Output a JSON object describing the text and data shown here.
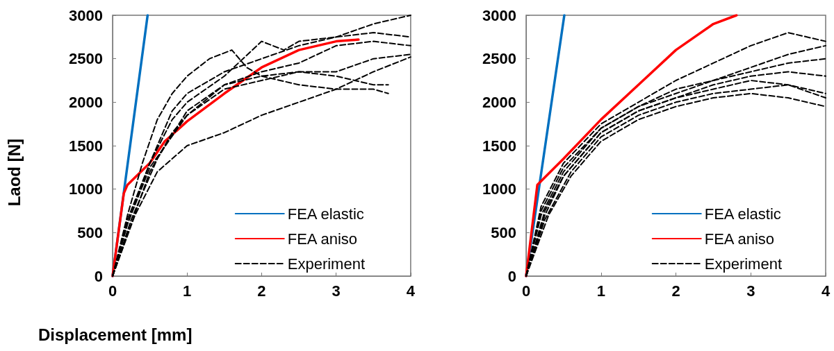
{
  "chart_data": [
    {
      "type": "line",
      "ylabel": "Laod [N]",
      "xlabel": "Displacement [mm]",
      "xlim": [
        0,
        4
      ],
      "ylim": [
        0,
        3000
      ],
      "xticks": [
        0,
        1,
        2,
        3,
        4
      ],
      "yticks": [
        0,
        500,
        1000,
        1500,
        2000,
        2500,
        3000
      ],
      "legend": "bottom right",
      "grid": false,
      "series": [
        {
          "name": "FEA elastic",
          "color": "#0070c0",
          "x": [
            0,
            0.47
          ],
          "values": [
            0,
            3000
          ]
        },
        {
          "name": "FEA aniso",
          "color": "#ff0000",
          "x": [
            0,
            0.15,
            0.2,
            0.5,
            0.7,
            1,
            1.5,
            2,
            2.5,
            3,
            3.3
          ],
          "values": [
            0,
            950,
            1050,
            1300,
            1550,
            1780,
            2100,
            2400,
            2600,
            2700,
            2720
          ]
        },
        {
          "name": "Experiment",
          "color": "#000000",
          "line_style": "dashed",
          "x": [
            0,
            0.2,
            0.4,
            0.6,
            0.8,
            1,
            1.3,
            1.6,
            1.8,
            2,
            2.5,
            3,
            3.5,
            3.7
          ],
          "values": [
            0,
            700,
            1300,
            1800,
            2100,
            2300,
            2500,
            2600,
            2400,
            2300,
            2200,
            2150,
            2150,
            2100
          ]
        },
        {
          "color": "#000000",
          "line_style": "dashed",
          "x": [
            0,
            0.2,
            0.5,
            0.8,
            1,
            1.5,
            2,
            2.5,
            3,
            3.5,
            4
          ],
          "values": [
            0,
            600,
            1300,
            1900,
            2100,
            2350,
            2500,
            2650,
            2750,
            2900,
            3000
          ]
        },
        {
          "color": "#000000",
          "line_style": "dashed",
          "x": [
            0,
            0.2,
            0.5,
            0.8,
            1,
            1.5,
            2,
            2.3,
            2.5,
            3,
            3.5,
            4
          ],
          "values": [
            0,
            650,
            1300,
            1800,
            2000,
            2300,
            2700,
            2600,
            2700,
            2750,
            2800,
            2750
          ]
        },
        {
          "color": "#000000",
          "line_style": "dashed",
          "x": [
            0,
            0.25,
            0.5,
            0.8,
            1,
            1.5,
            2,
            2.5,
            3,
            3.5,
            4
          ],
          "values": [
            0,
            600,
            1200,
            1650,
            1850,
            2150,
            2250,
            2350,
            2350,
            2500,
            2550
          ]
        },
        {
          "color": "#000000",
          "line_style": "dashed",
          "x": [
            0,
            0.3,
            0.6,
            1,
            1.5,
            2,
            2.5,
            3,
            3.5,
            4
          ],
          "values": [
            0,
            700,
            1200,
            1500,
            1650,
            1850,
            2000,
            2150,
            2350,
            2520
          ]
        },
        {
          "color": "#000000",
          "line_style": "dashed",
          "x": [
            0,
            0.25,
            0.6,
            1,
            1.5,
            2,
            2.5,
            3,
            3.5,
            3.7
          ],
          "values": [
            0,
            650,
            1350,
            1900,
            2200,
            2300,
            2350,
            2300,
            2200,
            2200
          ]
        },
        {
          "color": "#000000",
          "line_style": "dashed",
          "x": [
            0,
            0.2,
            0.5,
            1,
            1.5,
            2,
            2.5,
            3,
            3.5,
            4
          ],
          "values": [
            0,
            600,
            1250,
            1850,
            2200,
            2350,
            2450,
            2650,
            2700,
            2650
          ]
        }
      ]
    },
    {
      "type": "line",
      "xlim": [
        0,
        4
      ],
      "ylim": [
        0,
        3000
      ],
      "xticks": [
        0,
        1,
        2,
        3,
        4
      ],
      "yticks": [
        0,
        500,
        1000,
        1500,
        2000,
        2500,
        3000
      ],
      "legend": "bottom right",
      "grid": false,
      "series": [
        {
          "name": "FEA elastic",
          "color": "#0070c0",
          "x": [
            0,
            0.51
          ],
          "values": [
            0,
            3000
          ]
        },
        {
          "name": "FEA aniso",
          "color": "#ff0000",
          "x": [
            0,
            0.15,
            0.5,
            1,
            1.5,
            2,
            2.5,
            2.81
          ],
          "values": [
            0,
            1050,
            1350,
            1800,
            2200,
            2600,
            2900,
            3000
          ]
        },
        {
          "name": "Experiment",
          "color": "#000000",
          "line_style": "dashed",
          "x": [
            0,
            0.2,
            0.5,
            1,
            1.5,
            2,
            2.5,
            3,
            3.5,
            4
          ],
          "values": [
            0,
            800,
            1300,
            1750,
            2000,
            2250,
            2450,
            2650,
            2800,
            2700
          ]
        },
        {
          "color": "#000000",
          "line_style": "dashed",
          "x": [
            0,
            0.2,
            0.5,
            1,
            1.5,
            2,
            2.5,
            3,
            3.5,
            4
          ],
          "values": [
            0,
            750,
            1250,
            1700,
            1950,
            2150,
            2250,
            2400,
            2550,
            2650
          ]
        },
        {
          "color": "#000000",
          "line_style": "dashed",
          "x": [
            0,
            0.2,
            0.5,
            1,
            1.5,
            2,
            2.5,
            3,
            3.5,
            4
          ],
          "values": [
            0,
            700,
            1200,
            1700,
            1950,
            2100,
            2250,
            2350,
            2450,
            2500
          ]
        },
        {
          "color": "#000000",
          "line_style": "dashed",
          "x": [
            0,
            0.25,
            0.5,
            1,
            1.5,
            2,
            2.5,
            3,
            3.5,
            4
          ],
          "values": [
            0,
            750,
            1150,
            1650,
            1900,
            2050,
            2200,
            2300,
            2350,
            2300
          ]
        },
        {
          "color": "#000000",
          "line_style": "dashed",
          "x": [
            0,
            0.25,
            0.5,
            1,
            1.5,
            2,
            2.5,
            3,
            3.5,
            4
          ],
          "values": [
            0,
            700,
            1150,
            1650,
            1900,
            2050,
            2150,
            2250,
            2200,
            2100
          ]
        },
        {
          "color": "#000000",
          "line_style": "dashed",
          "x": [
            0,
            0.3,
            0.6,
            1,
            1.5,
            2,
            2.5,
            3,
            3.5,
            4
          ],
          "values": [
            0,
            700,
            1150,
            1550,
            1800,
            1950,
            2050,
            2100,
            2050,
            1950
          ]
        },
        {
          "color": "#000000",
          "line_style": "dashed",
          "x": [
            0,
            0.25,
            0.6,
            1,
            1.5,
            2,
            2.5,
            3,
            3.5,
            4
          ],
          "values": [
            0,
            650,
            1200,
            1600,
            1850,
            2000,
            2100,
            2150,
            2200,
            2050
          ]
        }
      ]
    }
  ]
}
